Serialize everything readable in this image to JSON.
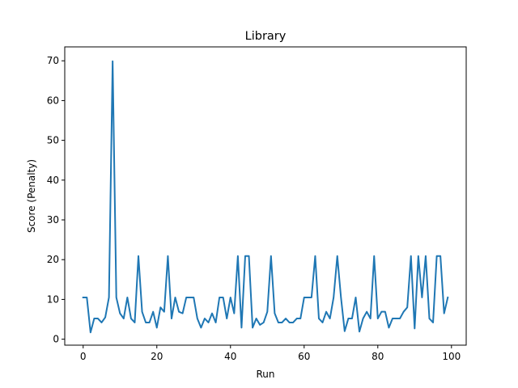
{
  "chart_data": {
    "type": "line",
    "title": "Library",
    "xlabel": "Run",
    "ylabel": "Score (Penalty)",
    "xlim": [
      -5,
      104
    ],
    "ylim": [
      -1.5,
      73.5
    ],
    "xticks": [
      0,
      20,
      40,
      60,
      80,
      100
    ],
    "yticks": [
      0,
      10,
      20,
      30,
      40,
      50,
      60,
      70
    ],
    "grid": false,
    "series": [
      {
        "color": "#1f77b4",
        "x": [
          0,
          1,
          2,
          3,
          4,
          5,
          6,
          7,
          8,
          9,
          10,
          11,
          12,
          13,
          14,
          15,
          16,
          17,
          18,
          19,
          20,
          21,
          22,
          23,
          24,
          25,
          26,
          27,
          28,
          29,
          30,
          31,
          32,
          33,
          34,
          35,
          36,
          37,
          38,
          39,
          40,
          41,
          42,
          43,
          44,
          45,
          46,
          47,
          48,
          49,
          50,
          51,
          52,
          53,
          54,
          55,
          56,
          57,
          58,
          59,
          60,
          61,
          62,
          63,
          64,
          65,
          66,
          67,
          68,
          69,
          70,
          71,
          72,
          73,
          74,
          75,
          76,
          77,
          78,
          79,
          80,
          81,
          82,
          83,
          84,
          85,
          86,
          87,
          88,
          89,
          90,
          91,
          92,
          93,
          94,
          95,
          96,
          97,
          98,
          99
        ],
        "y": [
          10.5,
          10.5,
          1.7,
          5.2,
          5.2,
          4.2,
          5.5,
          10.5,
          69.9,
          10.5,
          6.5,
          5.2,
          10.5,
          5.2,
          4.2,
          20.9,
          6.9,
          4.2,
          4.2,
          6.9,
          2.9,
          8.0,
          6.9,
          20.9,
          5.2,
          10.5,
          6.9,
          6.5,
          10.5,
          10.5,
          10.5,
          5.2,
          2.9,
          5.2,
          4.2,
          6.5,
          4.2,
          10.5,
          10.5,
          5.2,
          10.5,
          6.5,
          20.9,
          2.9,
          20.9,
          20.9,
          2.9,
          5.2,
          3.6,
          4.2,
          6.9,
          20.9,
          6.5,
          4.2,
          4.2,
          5.2,
          4.2,
          4.2,
          5.2,
          5.2,
          10.5,
          10.5,
          10.5,
          20.9,
          5.2,
          4.2,
          6.9,
          5.2,
          10.5,
          20.9,
          10.5,
          2.0,
          5.2,
          5.2,
          10.5,
          1.9,
          5.2,
          6.9,
          5.2,
          20.9,
          5.2,
          6.9,
          6.9,
          2.9,
          5.2,
          5.2,
          5.2,
          6.9,
          8.0,
          20.9,
          2.7,
          20.9,
          10.5,
          20.9,
          5.2,
          4.2,
          20.9,
          20.9,
          6.5,
          10.5
        ]
      }
    ]
  }
}
